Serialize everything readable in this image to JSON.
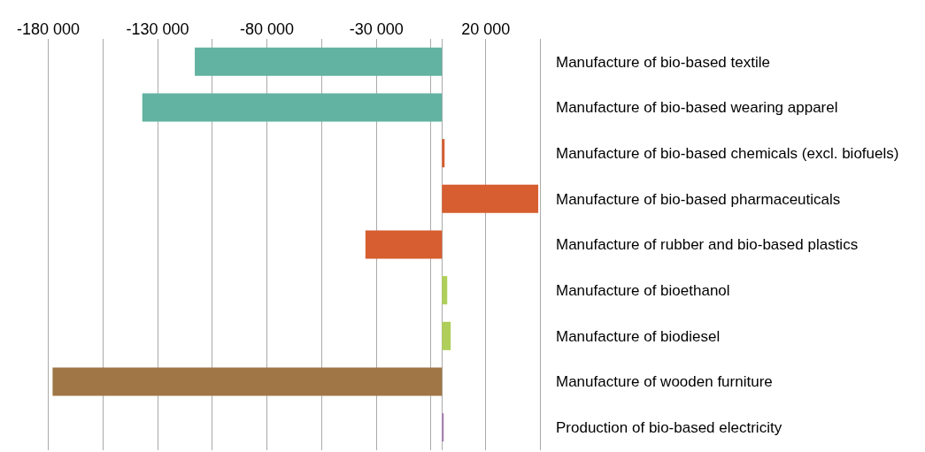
{
  "chart_data": {
    "type": "bar",
    "orientation": "horizontal",
    "categories": [
      "Manufacture of bio-based textile",
      "Manufacture of bio-based wearing apparel",
      "Manufacture of bio-based chemicals (excl. biofuels)",
      "Manufacture of bio-based pharmaceuticals",
      "Manufacture of rubber and bio-based plastics",
      "Manufacture of bioethanol",
      "Manufacture of biodiesel",
      "Manufacture of wooden furniture",
      "Production of bio-based electricity"
    ],
    "values": [
      -113000,
      -137000,
      1200,
      44000,
      -35000,
      2400,
      4000,
      -178000,
      800
    ],
    "colors": [
      "#62b3a1",
      "#62b3a1",
      "#d75e30",
      "#d75e30",
      "#d75e30",
      "#afcf5a",
      "#afcf5a",
      "#a07646",
      "#a583b0"
    ],
    "xlim": [
      -181000,
      46000
    ],
    "xticks": [
      {
        "value": -180000,
        "label": "-180 000"
      },
      {
        "value": -155000,
        "label": null
      },
      {
        "value": -130000,
        "label": "-130 000"
      },
      {
        "value": -105000,
        "label": null
      },
      {
        "value": -80000,
        "label": "-80 000"
      },
      {
        "value": -55000,
        "label": null
      },
      {
        "value": -30000,
        "label": "-30 000"
      },
      {
        "value": -5000,
        "label": null
      },
      {
        "value": 20000,
        "label": "20 000"
      },
      {
        "value": 45000,
        "label": null
      }
    ],
    "grid": "x",
    "legend": false
  }
}
